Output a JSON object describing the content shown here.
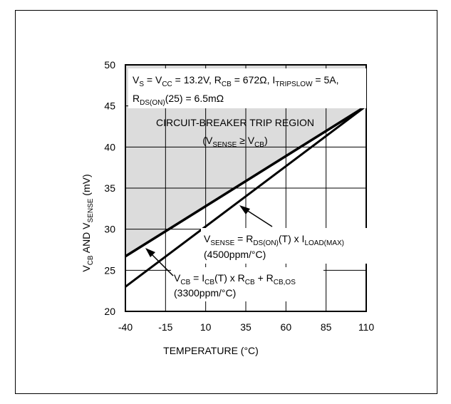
{
  "chart_data": {
    "type": "line",
    "xlabel": "TEMPERATURE (°C)",
    "ylabel": {
      "parts": [
        "V",
        "CB",
        " AND V",
        "SENSE",
        " (mV)"
      ]
    },
    "x_ticks": [
      -40,
      -15,
      10,
      35,
      60,
      85,
      110
    ],
    "y_ticks": [
      20,
      25,
      30,
      35,
      40,
      45,
      50
    ],
    "xlim": [
      -40,
      110
    ],
    "ylim": [
      20,
      50
    ],
    "grid": true,
    "series": [
      {
        "name_parts": [
          "V",
          "CB",
          " = I",
          "CB",
          "(T) x R",
          "CB",
          " + R",
          "CB,OS"
        ],
        "name_sub": "(3300ppm/°C)",
        "x": [
          -40,
          110
        ],
        "y": [
          26.7,
          45
        ]
      },
      {
        "name_parts": [
          "V",
          "SENSE",
          " = R",
          "DS(ON)",
          "(T) x I",
          "LOAD(MAX)"
        ],
        "name_sub": "(4500ppm/°C)",
        "x": [
          -40,
          110
        ],
        "y": [
          23,
          45
        ]
      }
    ],
    "shaded_region": {
      "label": "CIRCUIT-BREAKER TRIP REGION",
      "condition_parts": [
        "(V",
        "SENSE",
        " ≥ V",
        "CB",
        ")"
      ]
    },
    "conditions": {
      "line1_parts": [
        "V",
        "S",
        " = V",
        "CC",
        " = 13.2V, R",
        "CB",
        " = 672Ω, I",
        "TRIPSLOW",
        " = 5A,"
      ],
      "line2_parts": [
        "R",
        "DS(ON)",
        "(25) = 6.5mΩ"
      ]
    },
    "colors": {
      "region": "#dcdcdc",
      "line": "#000000",
      "grid": "#000000"
    }
  }
}
